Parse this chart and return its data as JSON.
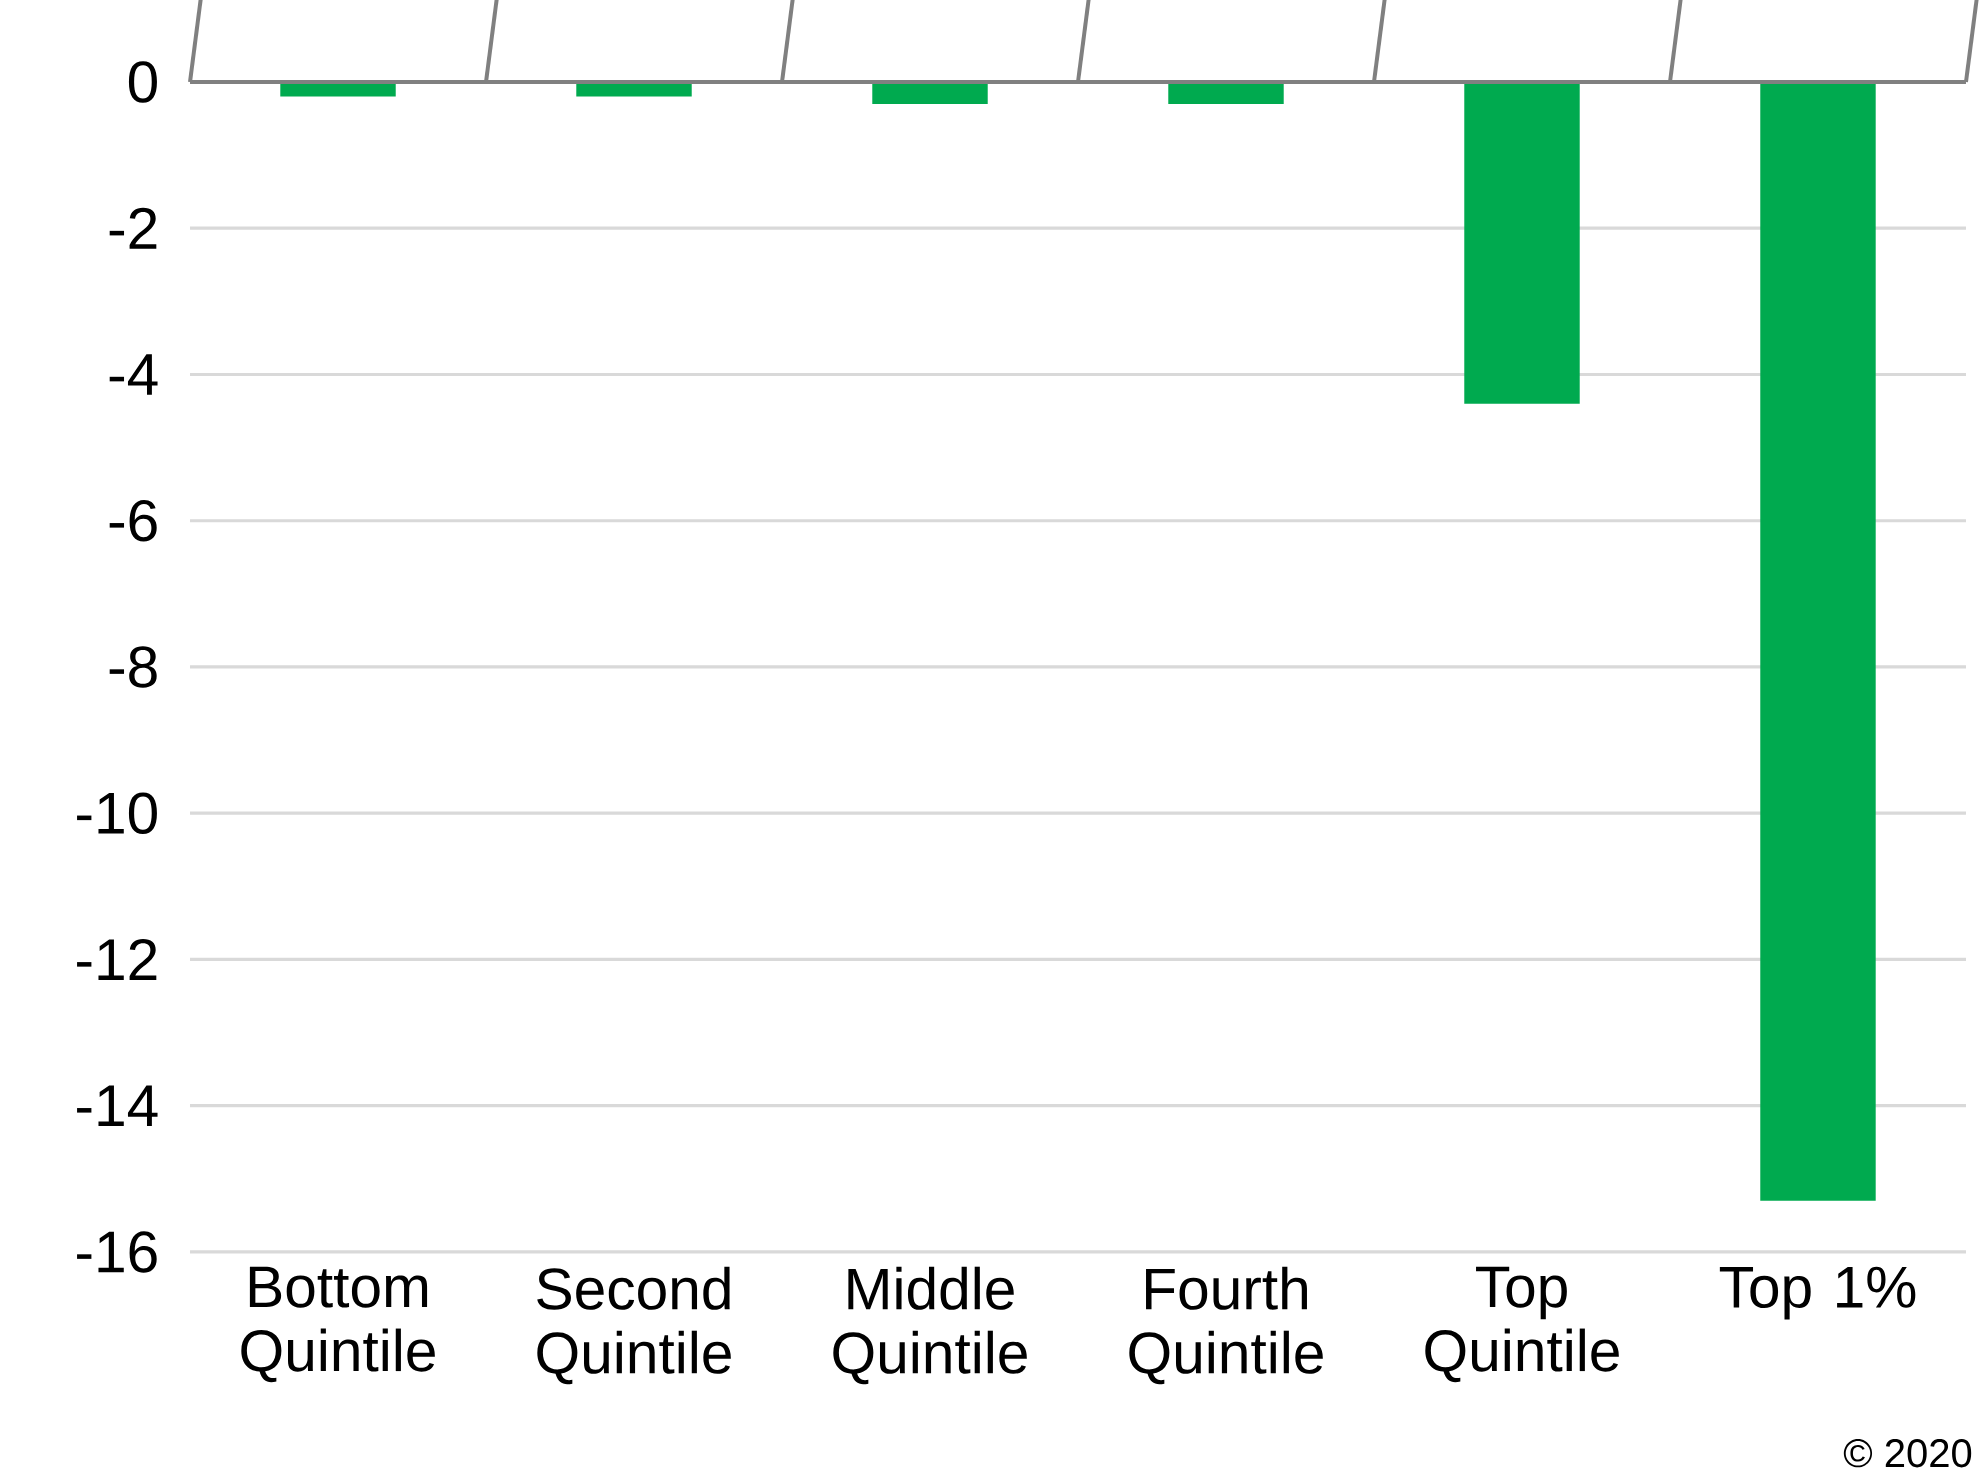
{
  "chart_data": {
    "type": "bar",
    "categories": [
      "Bottom Quintile",
      "Second Quintile",
      "Middle Quintile",
      "Fourth Quintile",
      "Top Quintile",
      "Top 1%"
    ],
    "values": [
      -0.2,
      -0.2,
      -0.3,
      -0.3,
      -4.4,
      -15.3
    ],
    "color": "#00aa4f",
    "ylim": [
      -16,
      0
    ],
    "yticks": [
      0,
      -2,
      -4,
      -6,
      -8,
      -10,
      -12,
      -14,
      -16
    ],
    "grid": "y",
    "annotations": [
      "© 2020"
    ]
  }
}
